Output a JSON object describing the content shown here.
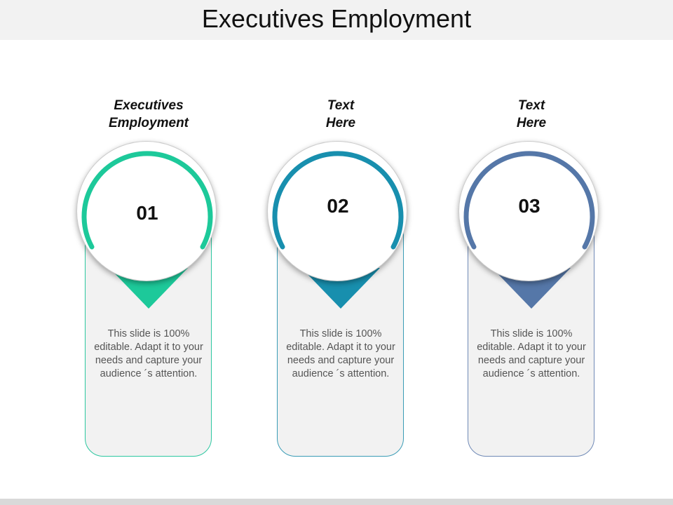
{
  "title": "Executives Employment",
  "items": [
    {
      "heading_line1": "Executives",
      "heading_line2": "Employment",
      "number": "01",
      "text": "This slide is 100% editable. Adapt it to your needs and capture your audience ´s attention.",
      "color": "#1dc99a",
      "border_color": "#2cc7a0"
    },
    {
      "heading_line1": "Text",
      "heading_line2": "Here",
      "number": "02",
      "text": "This slide is 100% editable. Adapt it to your needs and capture your audience ´s attention.",
      "color": "#188fae",
      "border_color": "#3a9cb6"
    },
    {
      "heading_line1": "Text",
      "heading_line2": "Here",
      "number": "03",
      "text": "This slide is 100% editable. Adapt it to your needs and capture your audience ´s attention.",
      "color": "#5577a8",
      "border_color": "#6f89b6"
    }
  ]
}
